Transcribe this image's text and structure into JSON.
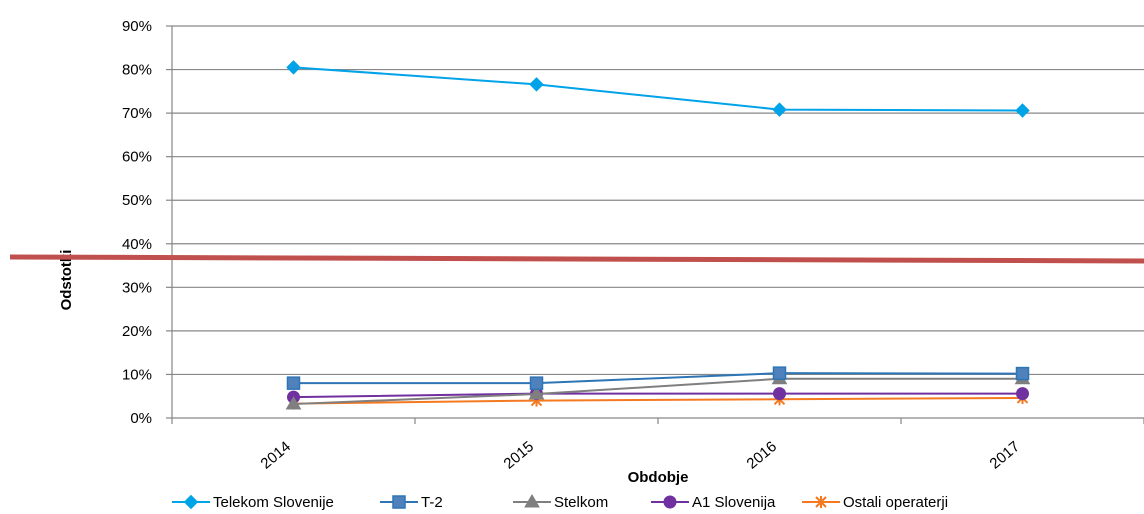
{
  "chart_data": {
    "type": "line",
    "categories": [
      "2014",
      "2015",
      "2016",
      "2017"
    ],
    "series": [
      {
        "name": "Telekom Slovenije",
        "values": [
          80.5,
          76.6,
          70.8,
          70.6
        ],
        "color": "#00A2E8",
        "marker": "diamond"
      },
      {
        "name": "T-2",
        "values": [
          8.0,
          8.0,
          10.3,
          10.2
        ],
        "color": "#2E75B6",
        "marker": "square"
      },
      {
        "name": "Stelkom",
        "values": [
          3.2,
          5.5,
          9.0,
          9.0
        ],
        "color": "#7F7F7F",
        "marker": "triangle"
      },
      {
        "name": "A1 Slovenija",
        "values": [
          4.8,
          5.6,
          5.6,
          5.6
        ],
        "color": "#7030A0",
        "marker": "circle"
      },
      {
        "name": "Ostali operaterji",
        "values": [
          3.3,
          4.0,
          4.3,
          4.6
        ],
        "color": "#F47920",
        "marker": "star"
      }
    ],
    "ylim": [
      0,
      90
    ],
    "yticks": [
      "0%",
      "10%",
      "20%",
      "30%",
      "40%",
      "50%",
      "60%",
      "70%",
      "80%",
      "90%"
    ],
    "xlabel": "Obdobje",
    "ylabel": "Odstotki",
    "grid": true,
    "legend": "bottom",
    "overlay_line": {
      "color": "#C0504D"
    }
  }
}
